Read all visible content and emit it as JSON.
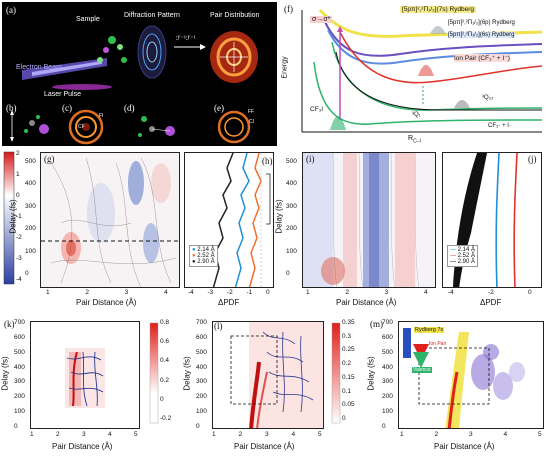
{
  "panel_a": {
    "label": "(a)",
    "sample": "Sample",
    "diffraction": "Diffraction Pattern",
    "pair_distribution": "Pair Distribution",
    "transform": "ℱ⁻¹ℱ⁻¹",
    "electron_beam": "Electron Beam",
    "laser_pulse": "Laser Pulse",
    "bg_color": "#000000"
  },
  "small_panels": {
    "b": "(b)",
    "c": "(c)",
    "d": "(d)",
    "e": "(e)",
    "ring_labels": {
      "cf": "CF",
      "ci": "CI",
      "ff": "FF",
      "fi": "FI"
    }
  },
  "panel_f": {
    "label": "(f)",
    "ylabel": "Energy",
    "xlabel": "R",
    "xlabel_sub": "C–I",
    "transition": "σ→σ*",
    "state_7s": "[5pπ]²,²Π₁/₂](7s) Rydberg",
    "state_6p": "[5pπ]²,²Π₁/₂](6p) Rydberg",
    "state_6s": "[5pπ]²,²Π₁/₂](6s) Rydberg",
    "ion_pair": "Ion Pair (CF₃⁺ + I⁻)",
    "q0_upper": "³Q₀₂",
    "q0_lower": "³Q₁",
    "cf3i": "CF₃I",
    "products": "CF₃· + I·",
    "colors": {
      "yellow": "#f2e24a",
      "purple": "#6a4fc0",
      "blue": "#5a8ce0",
      "red": "#e0332b",
      "green": "#2db36a",
      "black": "#111111"
    }
  },
  "panel_g": {
    "label": "(g)",
    "ylabel": "Delay (fs)",
    "xlabel": "Pair Distance (Å)",
    "yticks": [
      "500",
      "400",
      "300",
      "200",
      "100",
      "0"
    ],
    "xticks": [
      "1",
      "2",
      "3",
      "4"
    ],
    "colorbar_ticks": [
      "2",
      "1",
      "0",
      "-1",
      "-2",
      "-3",
      "-4"
    ]
  },
  "panel_h": {
    "label": "(h)",
    "xlabel": "ΔPDF",
    "xticks": [
      "-4",
      "-3",
      "-2",
      "-1",
      "0"
    ],
    "legend": [
      "2.14 Å",
      "2.52 Å",
      "2.90 Å"
    ],
    "colors": [
      "#1f8fd6",
      "#f07030",
      "#222222"
    ]
  },
  "panel_i": {
    "label": "(i)",
    "ylabel": "Delay (fs)",
    "xlabel": "Pair Distance (Å)",
    "yticks": [
      "500",
      "400",
      "300",
      "200",
      "100",
      "0"
    ],
    "xticks": [
      "1",
      "2",
      "3",
      "4"
    ]
  },
  "panel_j": {
    "label": "(j)",
    "xlabel": "ΔPDF",
    "xticks": [
      "-4",
      "-2",
      "0"
    ],
    "legend": [
      "2.14 Å",
      "2.52 Å",
      "2.90 Å"
    ],
    "colors": [
      "#1f8fd6",
      "#e0332b",
      "#111111"
    ]
  },
  "panel_k": {
    "label": "(k)",
    "ylabel": "Delay (fs)",
    "xlabel": "Pair Distance (Å)",
    "yticks": [
      "700",
      "600",
      "500",
      "400",
      "300",
      "200",
      "100",
      "0"
    ],
    "xticks": [
      "1",
      "2",
      "3",
      "4",
      "5"
    ],
    "colorbar_ticks": [
      "0.8",
      "0.6",
      "0.4",
      "0.2",
      "0",
      "-0.2"
    ]
  },
  "panel_l": {
    "label": "(l)",
    "ylabel": "Delay (fs)",
    "xlabel": "Pair Distance (Å)",
    "yticks": [
      "700",
      "600",
      "500",
      "400",
      "300",
      "200",
      "100",
      "0"
    ],
    "xticks": [
      "1",
      "2",
      "3",
      "4",
      "5"
    ],
    "colorbar_ticks": [
      "0.35",
      "0.3",
      "0.25",
      "0.2",
      "0.15",
      "0.1",
      "0.05",
      "0"
    ]
  },
  "panel_m": {
    "label": "(m)",
    "ylabel": "Delay (fs)",
    "xlabel": "Pair Distance (Å)",
    "yticks": [
      "700",
      "600",
      "500",
      "400",
      "300",
      "200",
      "100",
      "0"
    ],
    "xticks": [
      "1",
      "2",
      "3",
      "4",
      "5"
    ],
    "inset_rydberg": "Rydberg 7s",
    "inset_ionpair": "Ion Pair",
    "inset_valence": "Valence"
  }
}
